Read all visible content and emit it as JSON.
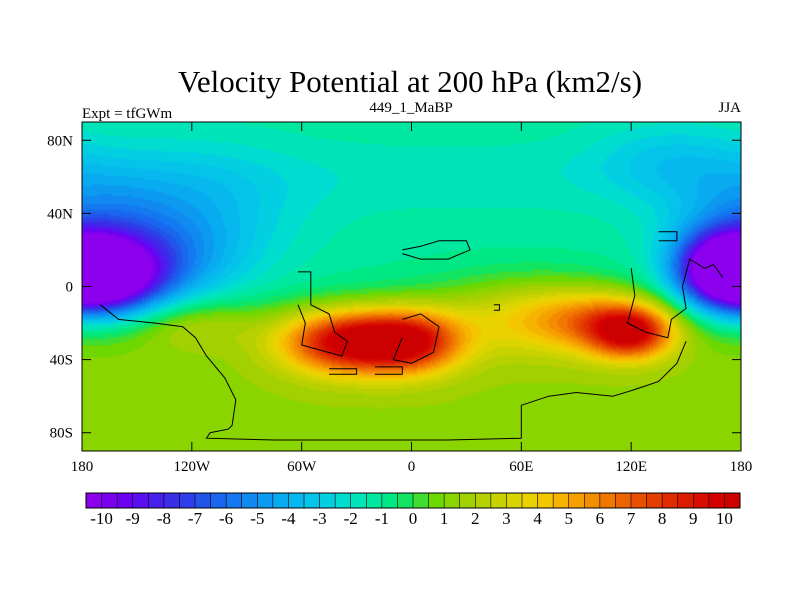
{
  "chart_data": {
    "type": "heatmap",
    "title": "Velocity Potential at 200 hPa (km2/s)",
    "subtitle_left": "Expt = tfGWm",
    "subtitle_center": "449_1_MaBP",
    "subtitle_right": "JJA",
    "x_axis": {
      "range": [
        -180,
        180
      ],
      "ticks": [
        {
          "value": -180,
          "label": "180"
        },
        {
          "value": -120,
          "label": "120W"
        },
        {
          "value": -60,
          "label": "60W"
        },
        {
          "value": 0,
          "label": "0"
        },
        {
          "value": 60,
          "label": "60E"
        },
        {
          "value": 120,
          "label": "120E"
        },
        {
          "value": 180,
          "label": "180"
        }
      ]
    },
    "y_axis": {
      "range": [
        -90,
        90
      ],
      "ticks": [
        {
          "value": 80,
          "label": "80N"
        },
        {
          "value": 40,
          "label": "40N"
        },
        {
          "value": 0,
          "label": "0"
        },
        {
          "value": -40,
          "label": "40S"
        },
        {
          "value": -80,
          "label": "80S"
        }
      ]
    },
    "colorbar": {
      "min": -10.5,
      "max": 10.5,
      "step": 0.5,
      "labels": [
        "-10",
        "-9",
        "-8",
        "-7",
        "-6",
        "-5",
        "-4",
        "-3",
        "-2",
        "-1",
        "0",
        "1",
        "2",
        "3",
        "4",
        "5",
        "6",
        "7",
        "8",
        "9",
        "10"
      ],
      "colors": [
        "#8c00ee",
        "#7c00f0",
        "#6c00f2",
        "#5a10f2",
        "#4820ee",
        "#3a2ee8",
        "#2e3ee8",
        "#2254ea",
        "#1a66ee",
        "#1478f0",
        "#108af0",
        "#0c9af0",
        "#08aaf0",
        "#06b8ee",
        "#04c4ea",
        "#02d0e2",
        "#00dcd0",
        "#00e4ba",
        "#00e8a0",
        "#00e884",
        "#10e460",
        "#40de30",
        "#6cd800",
        "#8ad400",
        "#a2d000",
        "#b6d000",
        "#c8d200",
        "#dad400",
        "#ead200",
        "#f4c600",
        "#f6b400",
        "#f6a000",
        "#f48c00",
        "#f07800",
        "#ec6400",
        "#e85000",
        "#e43e00",
        "#e02c00",
        "#dc1c00",
        "#d80c00",
        "#d40000",
        "#cc0000"
      ]
    },
    "field": {
      "description_units": "10^6 m2/s",
      "centers": [
        {
          "lon": -170,
          "lat": 5,
          "value": -9.5,
          "slon": 22,
          "slat": 14
        },
        {
          "lon": -150,
          "lat": 12,
          "value": -4,
          "slon": 35,
          "slat": 20
        },
        {
          "lon": -120,
          "lat": 40,
          "value": -2,
          "slon": 40,
          "slat": 25
        },
        {
          "lon": 170,
          "lat": 10,
          "value": -8,
          "slon": 18,
          "slat": 14
        },
        {
          "lon": 180,
          "lat": 40,
          "value": -2,
          "slon": 30,
          "slat": 20
        },
        {
          "lon": 140,
          "lat": 70,
          "value": -1.5,
          "slon": 30,
          "slat": 15
        },
        {
          "lon": -35,
          "lat": -30,
          "value": 9,
          "slon": 25,
          "slat": 12
        },
        {
          "lon": 0,
          "lat": -30,
          "value": 7,
          "slon": 20,
          "slat": 12
        },
        {
          "lon": 120,
          "lat": -25,
          "value": 8,
          "slon": 16,
          "slat": 10
        },
        {
          "lon": 100,
          "lat": -18,
          "value": 4,
          "slon": 25,
          "slat": 12
        },
        {
          "lon": 60,
          "lat": -15,
          "value": 3,
          "slon": 35,
          "slat": 15
        },
        {
          "lon": -120,
          "lat": -20,
          "value": 2,
          "slon": 25,
          "slat": 10
        }
      ]
    }
  }
}
